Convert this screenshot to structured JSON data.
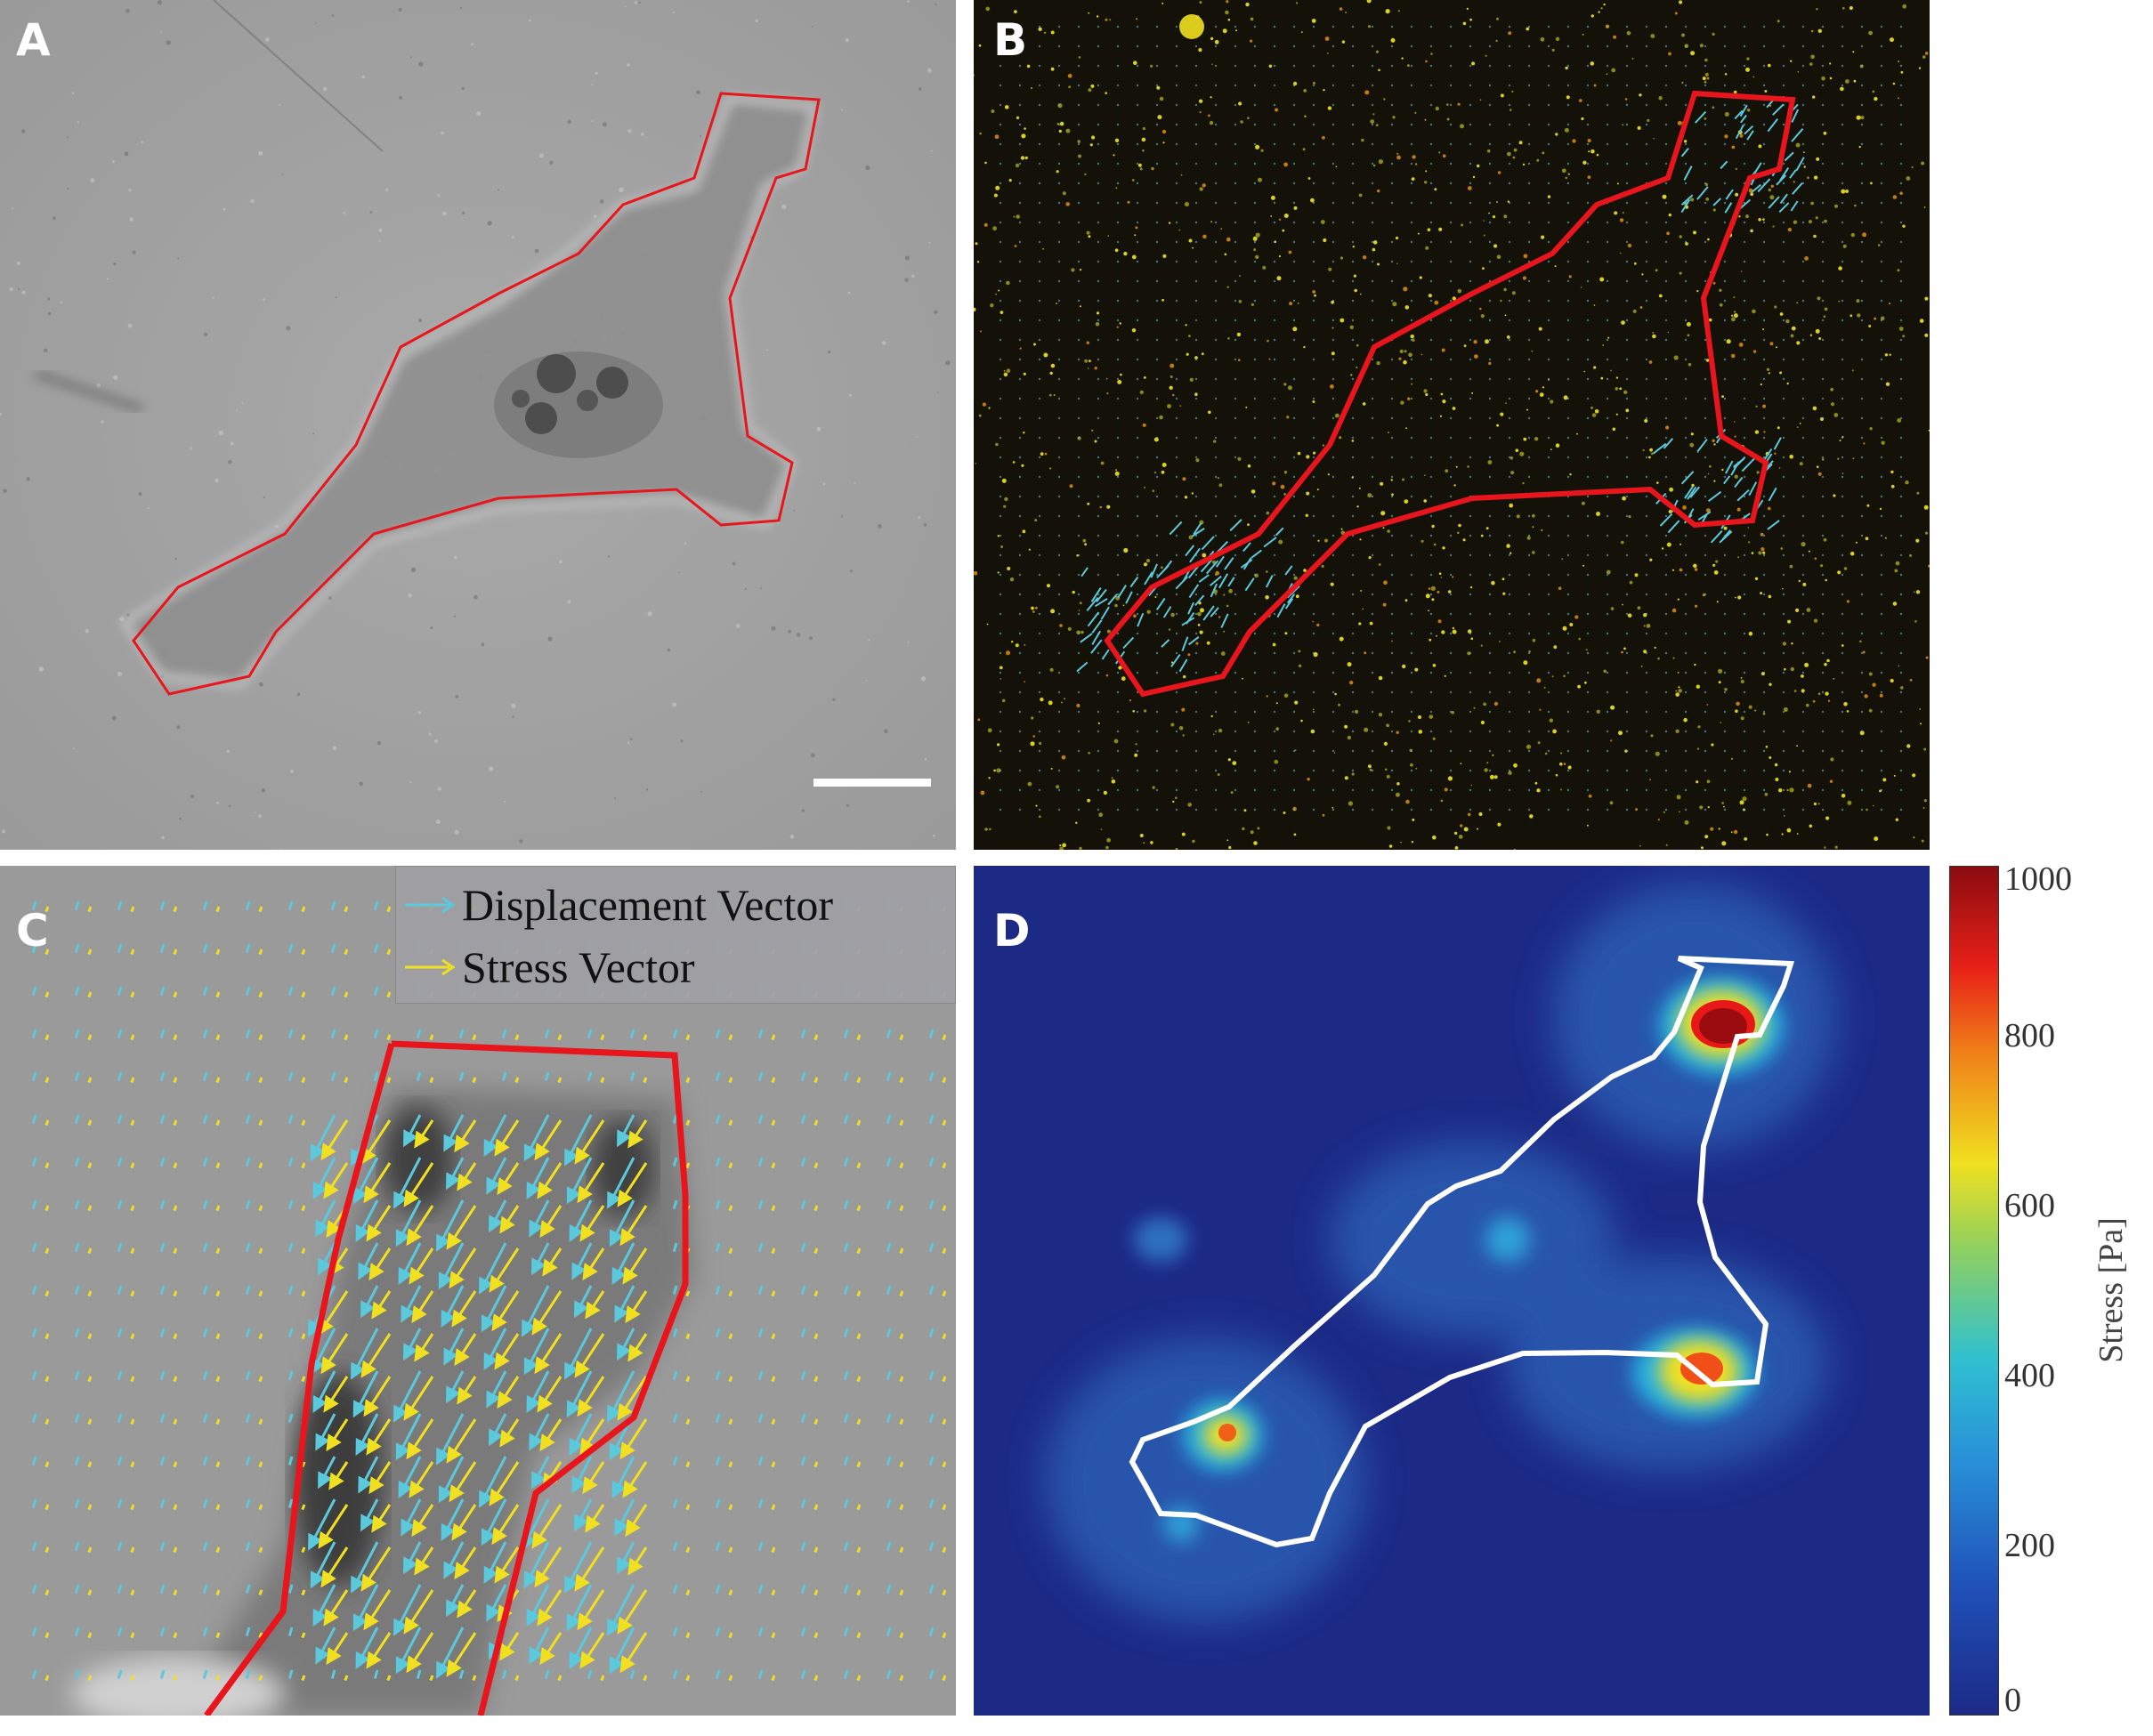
{
  "figure": {
    "panels": [
      {
        "id": "A",
        "label": "A"
      },
      {
        "id": "B",
        "label": "B"
      },
      {
        "id": "C",
        "label": "C"
      },
      {
        "id": "D",
        "label": "D"
      }
    ],
    "legend": {
      "items": [
        {
          "label": "Displacement Vector",
          "color": "#5cc8dc"
        },
        {
          "label": "Stress Vector",
          "color": "#f0e020"
        }
      ]
    },
    "colors": {
      "outline_red": "#e8161c",
      "outline_white": "#ffffff",
      "displacement": "#5cc8dc",
      "stress": "#f0e020"
    }
  },
  "chart_data": {
    "type": "heatmap",
    "colorbar": {
      "label": "Stress [Pa]",
      "range": [
        0,
        1000
      ],
      "ticks": [
        "0",
        "200",
        "400",
        "600",
        "800",
        "1000"
      ],
      "colormap": "jet"
    }
  }
}
